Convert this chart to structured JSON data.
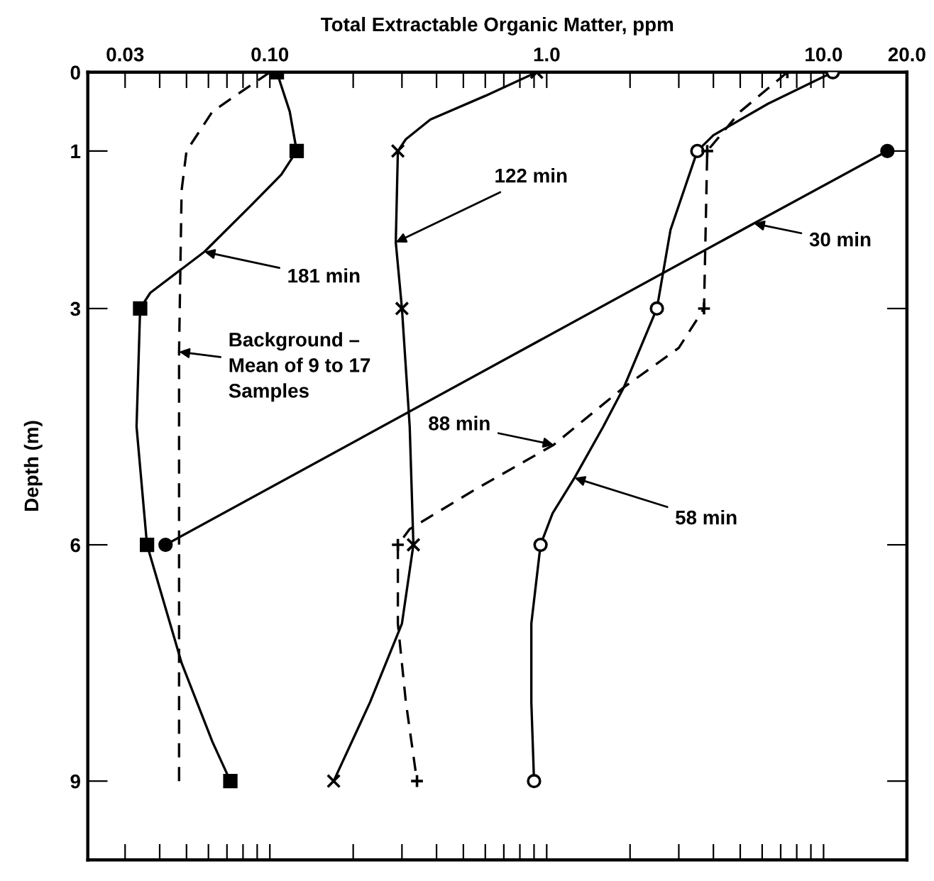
{
  "chart_data": {
    "type": "line",
    "xlabel": "Total Extractable Organic Matter, ppm",
    "ylabel": "Depth (m)",
    "log": "x",
    "xlim": [
      0.022,
      20
    ],
    "ylim": [
      10,
      0
    ],
    "xticks": [
      {
        "value": 0.03,
        "label": "0.03"
      },
      {
        "value": 0.04,
        "label": null
      },
      {
        "value": 0.05,
        "label": null
      },
      {
        "value": 0.06,
        "label": null
      },
      {
        "value": 0.07,
        "label": null
      },
      {
        "value": 0.08,
        "label": null
      },
      {
        "value": 0.09,
        "label": null
      },
      {
        "value": 0.1,
        "label": "0.10"
      },
      {
        "value": 0.2,
        "label": null
      },
      {
        "value": 0.3,
        "label": null
      },
      {
        "value": 0.4,
        "label": null
      },
      {
        "value": 0.5,
        "label": null
      },
      {
        "value": 0.6,
        "label": null
      },
      {
        "value": 0.7,
        "label": null
      },
      {
        "value": 0.8,
        "label": null
      },
      {
        "value": 0.9,
        "label": null
      },
      {
        "value": 1,
        "label": "1.0"
      },
      {
        "value": 2,
        "label": null
      },
      {
        "value": 3,
        "label": null
      },
      {
        "value": 4,
        "label": null
      },
      {
        "value": 5,
        "label": null
      },
      {
        "value": 6,
        "label": null
      },
      {
        "value": 7,
        "label": null
      },
      {
        "value": 8,
        "label": null
      },
      {
        "value": 9,
        "label": null
      },
      {
        "value": 10,
        "label": "10.0"
      },
      {
        "value": 20,
        "label": "20.0"
      }
    ],
    "yticks": [
      0,
      1,
      3,
      6,
      9
    ],
    "grid": false,
    "legend": false,
    "series": [
      {
        "color": "#000000",
        "marker": "none",
        "line_style": "solid",
        "x": [
          17,
          5.6,
          0.042
        ],
        "values": [
          1,
          1.92,
          6
        ]
      },
      {
        "color": "#000000",
        "marker": "none",
        "line_style": "solid",
        "x": [
          10.8,
          6.3,
          4.0,
          3.5,
          2.8,
          2.5,
          1.9,
          1.6,
          1.26,
          1.05,
          0.95,
          0.88,
          0.88,
          0.9
        ],
        "values": [
          0,
          0.4,
          0.8,
          1,
          2,
          3,
          4,
          4.5,
          5.15,
          5.6,
          6,
          7,
          8,
          9
        ]
      },
      {
        "color": "#000000",
        "marker": "none",
        "line_style": "dashed",
        "x": [
          7.4,
          5.0,
          3.8,
          3.75,
          3.7,
          3.0,
          1.9,
          1.06,
          0.55,
          0.32,
          0.29,
          0.29,
          0.31,
          0.34
        ],
        "values": [
          0,
          0.5,
          1,
          2,
          3,
          3.5,
          4,
          4.73,
          5.3,
          5.8,
          6,
          7,
          8,
          9
        ]
      },
      {
        "color": "#000000",
        "marker": "none",
        "line_style": "solid",
        "x": [
          0.92,
          0.6,
          0.38,
          0.31,
          0.29,
          0.285,
          0.3,
          0.32,
          0.33,
          0.3,
          0.23,
          0.17
        ],
        "values": [
          0,
          0.3,
          0.6,
          0.85,
          1,
          2.16,
          3,
          4.5,
          6,
          7,
          8,
          9
        ]
      },
      {
        "color": "#000000",
        "marker": "none",
        "line_style": "solid",
        "x": [
          0.106,
          0.118,
          0.125,
          0.11,
          0.085,
          0.058,
          0.037,
          0.034,
          0.033,
          0.036,
          0.048,
          0.062,
          0.072
        ],
        "values": [
          0,
          0.5,
          1,
          1.3,
          1.7,
          2.28,
          2.8,
          3,
          4.5,
          6,
          7.5,
          8.5,
          9
        ]
      },
      {
        "color": "#000000",
        "marker": "none",
        "line_style": "dashed",
        "x": [
          0.1,
          0.075,
          0.062,
          0.05,
          0.048,
          0.047,
          0.047
        ],
        "values": [
          0,
          0.3,
          0.5,
          1,
          1.5,
          3.55,
          9
        ]
      },
      {
        "type": "scatter",
        "color": "#000000",
        "marker": "circle",
        "x": [
          17,
          0.042
        ],
        "values": [
          1,
          6
        ]
      },
      {
        "type": "scatter",
        "color": "#000000",
        "marker": "circle-open",
        "x": [
          10.8,
          3.5,
          2.5,
          0.95,
          0.9
        ],
        "values": [
          0,
          1,
          3,
          6,
          9
        ]
      },
      {
        "type": "scatter",
        "color": "#000000",
        "marker": "plus",
        "x": [
          7.4,
          3.8,
          3.7,
          0.29,
          0.34
        ],
        "values": [
          0,
          1,
          3,
          6,
          9
        ]
      },
      {
        "type": "scatter",
        "color": "#000000",
        "marker": "cross",
        "x": [
          0.92,
          0.29,
          0.3,
          0.33,
          0.17
        ],
        "values": [
          0,
          1,
          3,
          6,
          9
        ]
      },
      {
        "type": "scatter",
        "color": "#000000",
        "marker": "square",
        "x": [
          0.106,
          0.125,
          0.034,
          0.036,
          0.072
        ],
        "values": [
          0,
          1,
          3,
          6,
          9
        ]
      }
    ],
    "annotations": [
      {
        "text": "181 min",
        "x": 0.058,
        "y": 2.28
      },
      {
        "text": "122 min",
        "x": 0.285,
        "y": 2.16
      },
      {
        "text": "30 min",
        "x": 5.6,
        "y": 1.92
      },
      {
        "text": "88 min",
        "x": 1.06,
        "y": 4.73
      },
      {
        "text": "58 min",
        "x": 1.26,
        "y": 5.15
      },
      {
        "text": "Background –\nMean of 9 to 17\nSamples",
        "x": 0.047,
        "y": 3.55
      }
    ]
  }
}
